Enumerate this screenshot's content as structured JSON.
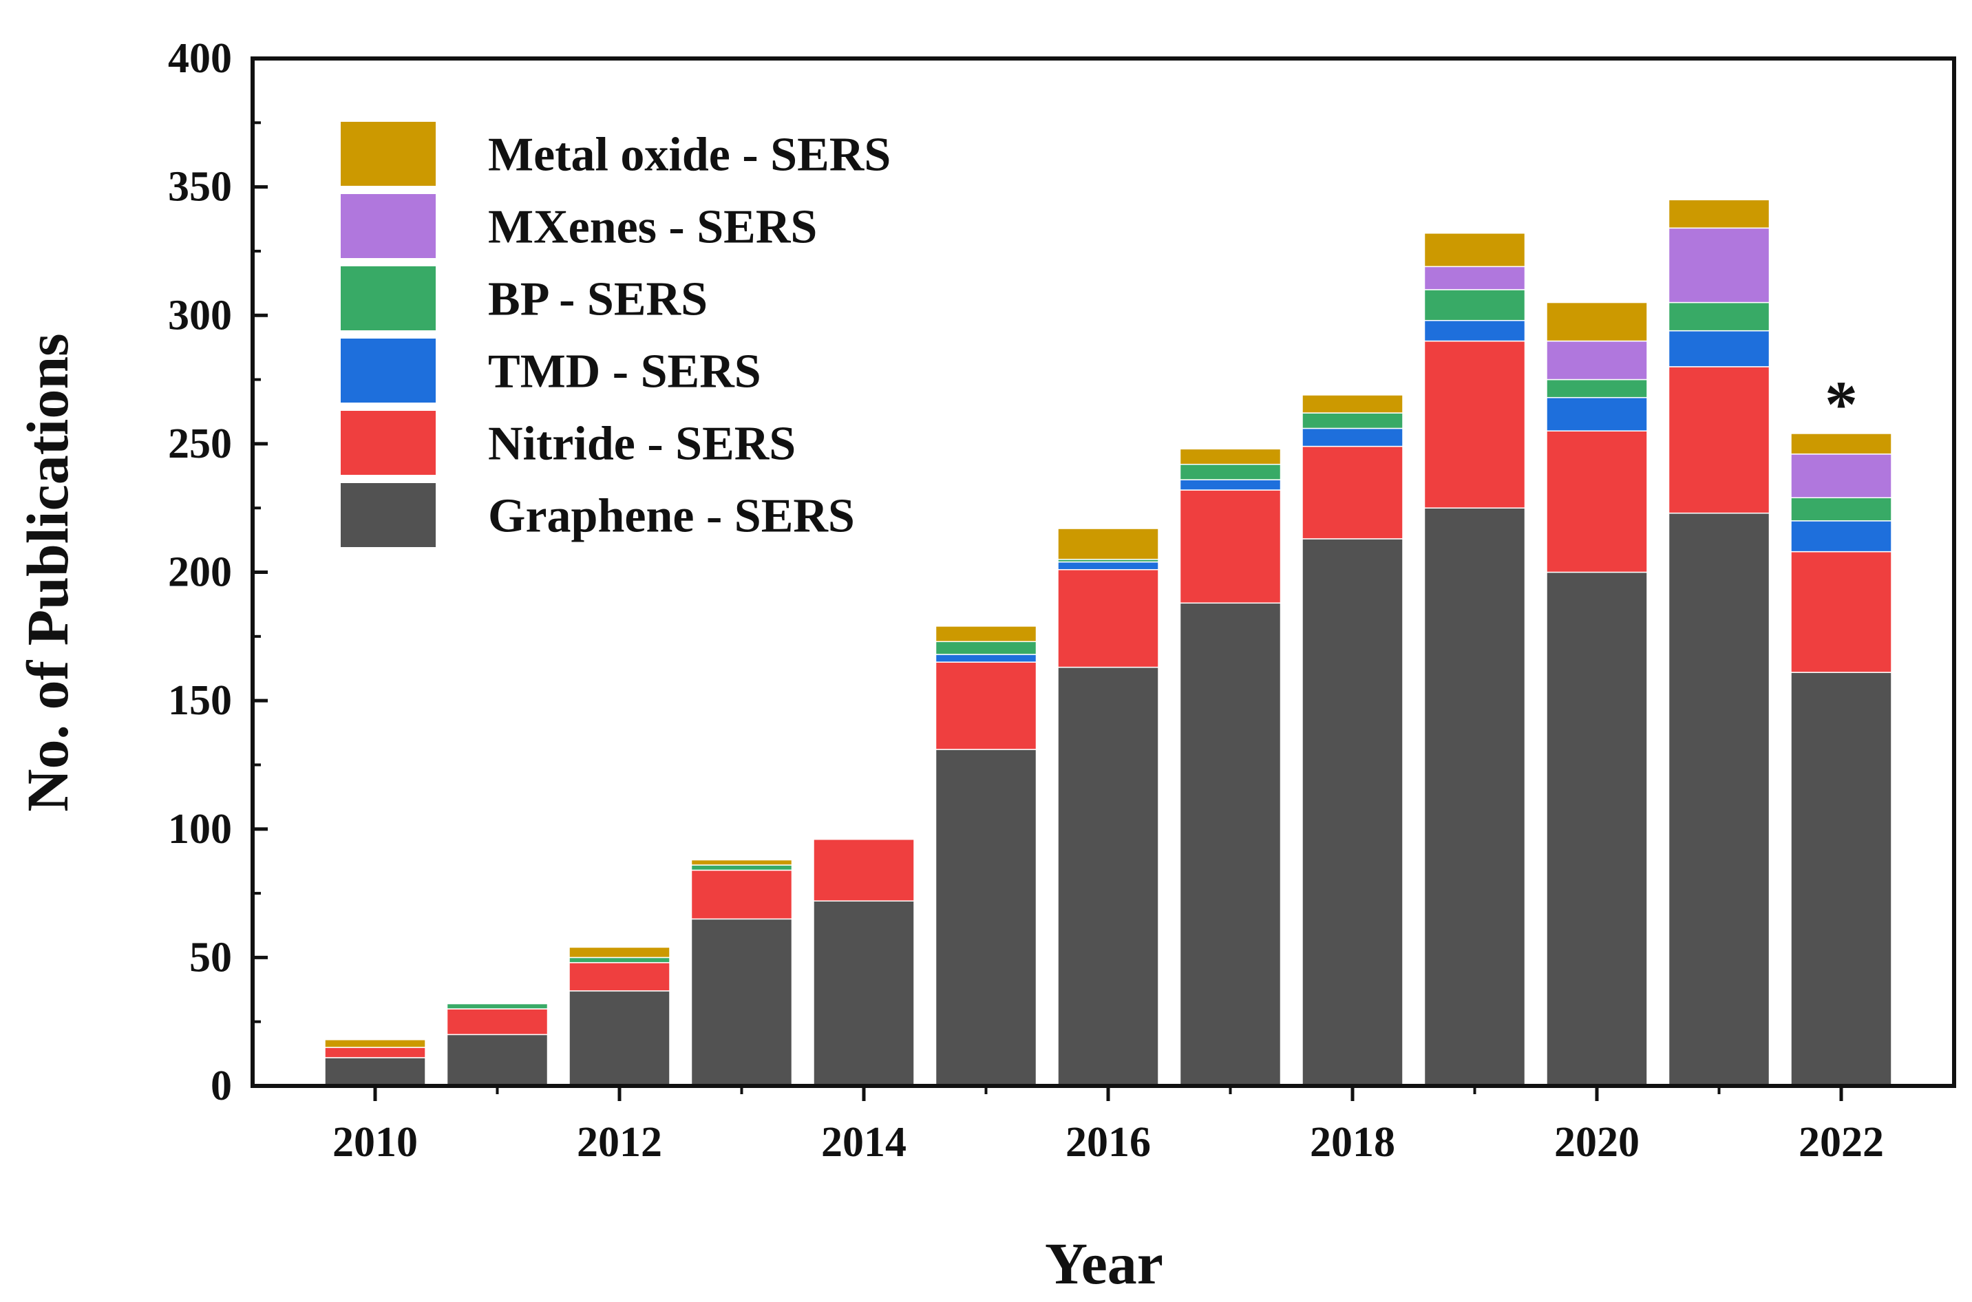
{
  "chart_data": {
    "type": "bar",
    "stacked": true,
    "title": "",
    "xlabel": "Year",
    "ylabel": "No. of Publications",
    "ylim": [
      0,
      400
    ],
    "yticks": [
      0,
      50,
      100,
      150,
      200,
      250,
      300,
      350,
      400
    ],
    "categories": [
      "2010",
      "2011",
      "2012",
      "2013",
      "2014",
      "2015",
      "2016",
      "2017",
      "2018",
      "2019",
      "2020",
      "2021",
      "2022"
    ],
    "xtick_labels": [
      "2010",
      "",
      "2012",
      "",
      "2014",
      "",
      "2016",
      "",
      "2018",
      "",
      "2020",
      "",
      "2022"
    ],
    "legend_position": "top-left",
    "series": [
      {
        "name": "Graphene - SERS",
        "color": "#525252",
        "values": [
          11,
          20,
          37,
          65,
          72,
          131,
          163,
          188,
          213,
          225,
          200,
          223,
          161
        ]
      },
      {
        "name": "Nitride - SERS",
        "color": "#ef3f3f",
        "values": [
          4,
          10,
          11,
          19,
          24,
          34,
          38,
          44,
          36,
          65,
          55,
          57,
          47
        ]
      },
      {
        "name": "TMD - SERS",
        "color": "#1e6fdc",
        "values": [
          0,
          0,
          0,
          0,
          0,
          3,
          3,
          4,
          7,
          8,
          13,
          14,
          12
        ]
      },
      {
        "name": "BP - SERS",
        "color": "#38aa66",
        "values": [
          0,
          2,
          2,
          2,
          0,
          5,
          1,
          6,
          6,
          12,
          7,
          11,
          9
        ]
      },
      {
        "name": "MXenes - SERS",
        "color": "#b077dd",
        "values": [
          0,
          0,
          0,
          0,
          0,
          0,
          0,
          0,
          0,
          9,
          15,
          29,
          17
        ]
      },
      {
        "name": "Metal oxide - SERS",
        "color": "#cc9900",
        "values": [
          3,
          0,
          4,
          2,
          0,
          6,
          12,
          6,
          7,
          13,
          15,
          11,
          8
        ]
      }
    ],
    "annotations": [
      {
        "text": "*",
        "category": "2022"
      }
    ]
  }
}
